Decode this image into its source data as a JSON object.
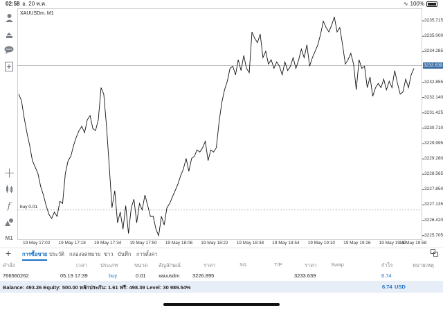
{
  "status_bar": {
    "time": "02:58",
    "date": "อ. 20 พ.ค.",
    "battery": "100%"
  },
  "chart": {
    "title": "XAUUSDm, M1",
    "buy_line_label": "buy 0.01",
    "current_price": "3233.639"
  },
  "chart_data": {
    "type": "line",
    "title": "XAUUSDm, M1",
    "y_ticks": [
      "3235.715",
      "3235.000",
      "3234.285",
      "3232.855",
      "3232.140",
      "3231.425",
      "3230.710",
      "3229.995",
      "3229.280",
      "3228.565",
      "3227.850",
      "3227.135",
      "3226.420",
      "3225.705"
    ],
    "x_ticks": [
      "19 May 17:02",
      "19 May 17:18",
      "19 May 17:34",
      "19 May 17:50",
      "19 May 18:06",
      "19 May 18:22",
      "19 May 18:38",
      "19 May 18:54",
      "19 May 19:10",
      "19 May 19:26",
      "19 May 19:42",
      "19 May 19:58"
    ],
    "ylim": [
      3225.5,
      3236.3
    ],
    "current_price": 3233.639,
    "buy_price": 3226.895,
    "series": [
      {
        "values": [
          3232.3,
          3232.0,
          3231.2,
          3230.5,
          3229.9,
          3229.2,
          3228.9,
          3228.6,
          3228.0,
          3227.6,
          3227.1,
          3226.7,
          3226.5,
          3226.8,
          3226.6,
          3227.3,
          3227.2,
          3228.6,
          3229.2,
          3229.4,
          3229.9,
          3230.3,
          3230.6,
          3230.8,
          3230.5,
          3231.1,
          3231.3,
          3230.7,
          3230.6,
          3231.1,
          3232.6,
          3232.3,
          3230.8,
          3228.9,
          3227.0,
          3227.8,
          3226.3,
          3226.8,
          3226.0,
          3227.1,
          3225.8,
          3227.0,
          3227.4,
          3226.3,
          3227.2,
          3226.9,
          3227.6,
          3227.1,
          3226.6,
          3226.6,
          3226.0,
          3225.7,
          3226.6,
          3226.2,
          3227.0,
          3227.2,
          3227.5,
          3227.8,
          3228.1,
          3228.5,
          3228.8,
          3229.3,
          3228.7,
          3229.3,
          3229.4,
          3229.7,
          3229.6,
          3229.8,
          3230.1,
          3229.2,
          3229.7,
          3229.6,
          3229.8,
          3231.0,
          3231.9,
          3232.5,
          3232.9,
          3233.5,
          3233.6,
          3233.2,
          3233.9,
          3233.4,
          3234.1,
          3233.5,
          3233.3,
          3235.2,
          3234.9,
          3234.7,
          3235.1,
          3234.0,
          3234.3,
          3233.7,
          3233.9,
          3233.5,
          3233.8,
          3233.6,
          3233.2,
          3233.8,
          3233.4,
          3233.6,
          3234.0,
          3233.5,
          3233.9,
          3234.4,
          3234.0,
          3234.6,
          3233.6,
          3234.0,
          3234.3,
          3234.6,
          3235.1,
          3235.7,
          3235.4,
          3235.2,
          3235.5,
          3235.9,
          3235.2,
          3235.4,
          3234.6,
          3233.7,
          3233.9,
          3234.2,
          3233.7,
          3232.5,
          3233.9,
          3233.5,
          3233.6,
          3232.6,
          3233.1,
          3232.2,
          3232.6,
          3232.8,
          3232.6,
          3233.0,
          3232.5,
          3232.9,
          3232.6,
          3233.4,
          3232.8,
          3232.3,
          3232.4,
          3233.0,
          3232.6,
          3233.2,
          3233.5
        ]
      }
    ]
  },
  "tabs": [
    "การซื้อขาย",
    "ประวัติ",
    "กล่องจดหมาย",
    "ข่าว",
    "บันทึก",
    "การตั้งค่า"
  ],
  "table": {
    "headers": [
      "คำสั่ง",
      "เวลา",
      "ประเภท",
      "ขนาด",
      "สัญลักษณ์",
      "ราคา",
      "S/L",
      "T/P",
      "ราคา",
      "Swap",
      "กำไร",
      "หมายเหตุ"
    ],
    "row": {
      "order": "766560262",
      "time": "05.19 17:39",
      "type": "buy",
      "size": "0.01",
      "symbol": "xauusdm",
      "open_price": "3226.895",
      "price": "3233.639",
      "profit": "6.74"
    }
  },
  "balance": {
    "text": "Balance: 493.26 Equity: 500.00 หลักประกัน: 1.61 ฟรี: 498.39 Level: 30 989.54%",
    "profit": "6.74",
    "currency": "USD"
  },
  "icons": {
    "toolbar": [
      "person-icon",
      "trade-arrows-icon",
      "chat-icon",
      "new-order-icon",
      "crosshair-icon",
      "candlestick-icon",
      "function-icon",
      "objects-icon",
      "timeframe-icon"
    ],
    "bottom": [
      "plus-icon",
      "layout-icon"
    ]
  },
  "toolbar": {
    "timeframe": "M1"
  },
  "colors": {
    "accent": "#1a73c7",
    "price_tag": "#3a6ea5",
    "balance_bg": "#e8eef8"
  }
}
